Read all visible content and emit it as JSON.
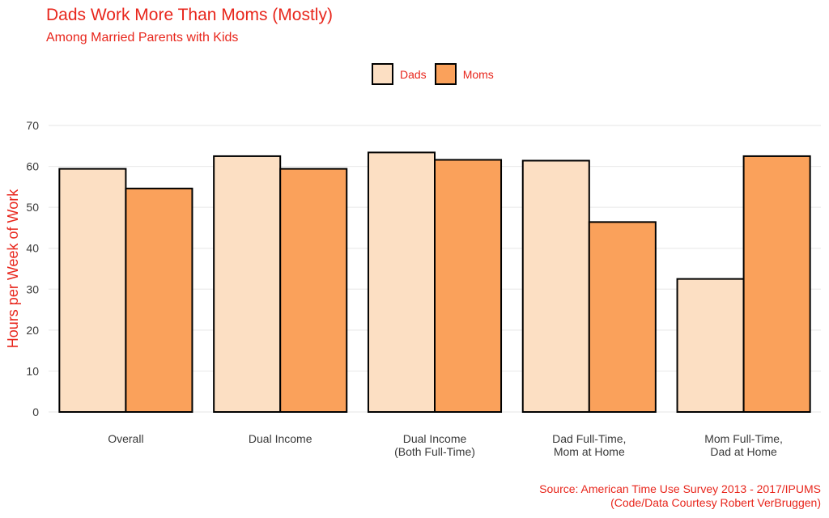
{
  "chart_data": {
    "type": "bar",
    "title": "Dads Work More Than Moms (Mostly)",
    "subtitle": "Among Married Parents with Kids",
    "ylabel": "Hours per Week of Work",
    "xlabel": "",
    "ylim": [
      0,
      70
    ],
    "yticks": [
      0,
      10,
      20,
      30,
      40,
      50,
      60,
      70
    ],
    "categories": [
      [
        "Overall"
      ],
      [
        "Dual Income"
      ],
      [
        "Dual Income",
        "(Both Full-Time)"
      ],
      [
        "Dad Full-Time,",
        "Mom at Home"
      ],
      [
        "Mom Full-Time,",
        "Dad at Home"
      ]
    ],
    "series": [
      {
        "name": "Dads",
        "color": "#fcdfc3",
        "values": [
          59.4,
          62.5,
          63.4,
          61.4,
          32.5
        ]
      },
      {
        "name": "Moms",
        "color": "#faa15b",
        "values": [
          54.6,
          59.4,
          61.6,
          46.4,
          62.5
        ]
      }
    ],
    "legend_position": "top-center",
    "grid": true,
    "caption": [
      "Source: American Time Use Survey 2013 - 2017/IPUMS",
      "(Code/Data Courtesy Robert VerBruggen)"
    ]
  },
  "colors": {
    "accent": "#e8261c",
    "dads": "#fcdfc3",
    "moms": "#faa15b"
  }
}
